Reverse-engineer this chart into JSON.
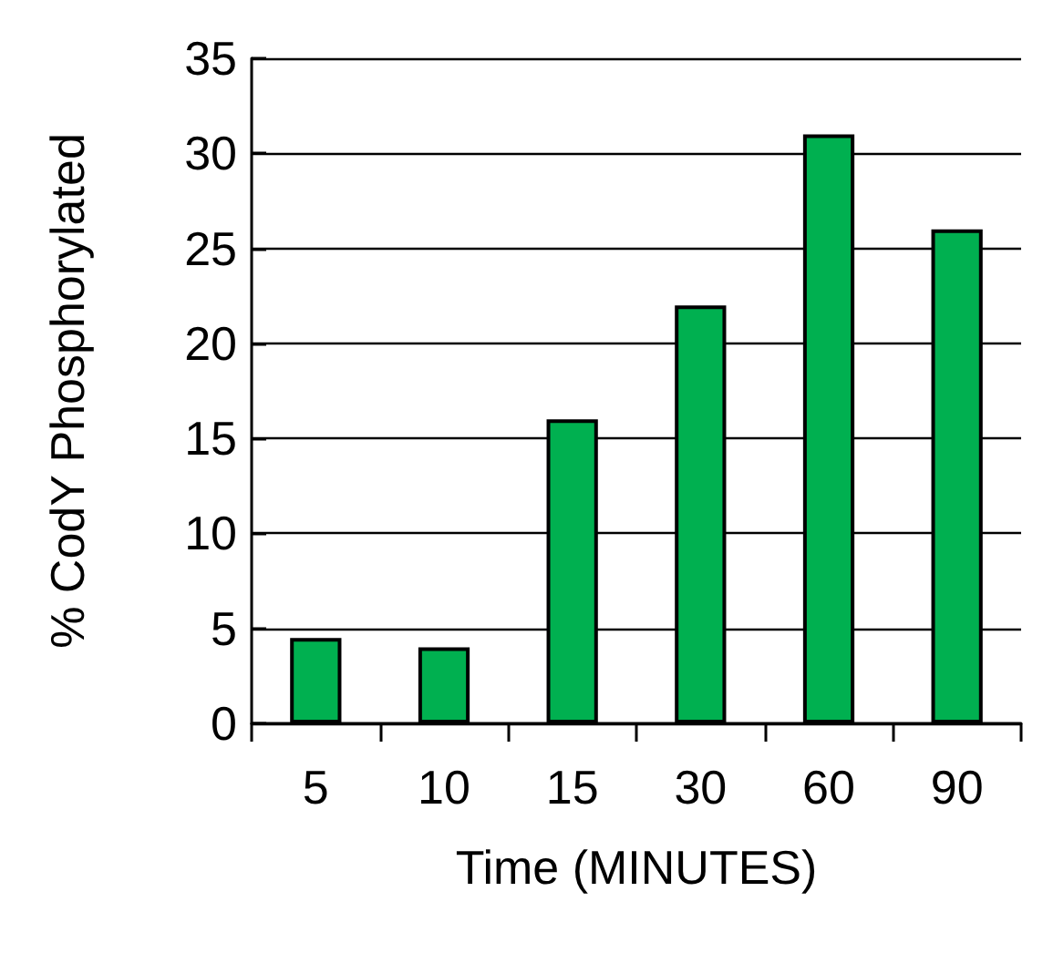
{
  "chart_data": {
    "type": "bar",
    "xlabel": "Time (MINUTES)",
    "ylabel": "% CodY Phosphorylated",
    "categories": [
      "5",
      "10",
      "15",
      "30",
      "60",
      "90"
    ],
    "values": [
      4.5,
      4,
      16,
      22,
      31,
      26
    ],
    "color": "#00b050",
    "ylim": [
      0,
      35
    ],
    "yticks": [
      0,
      5,
      10,
      15,
      20,
      25,
      30,
      35
    ],
    "grid": "y"
  }
}
